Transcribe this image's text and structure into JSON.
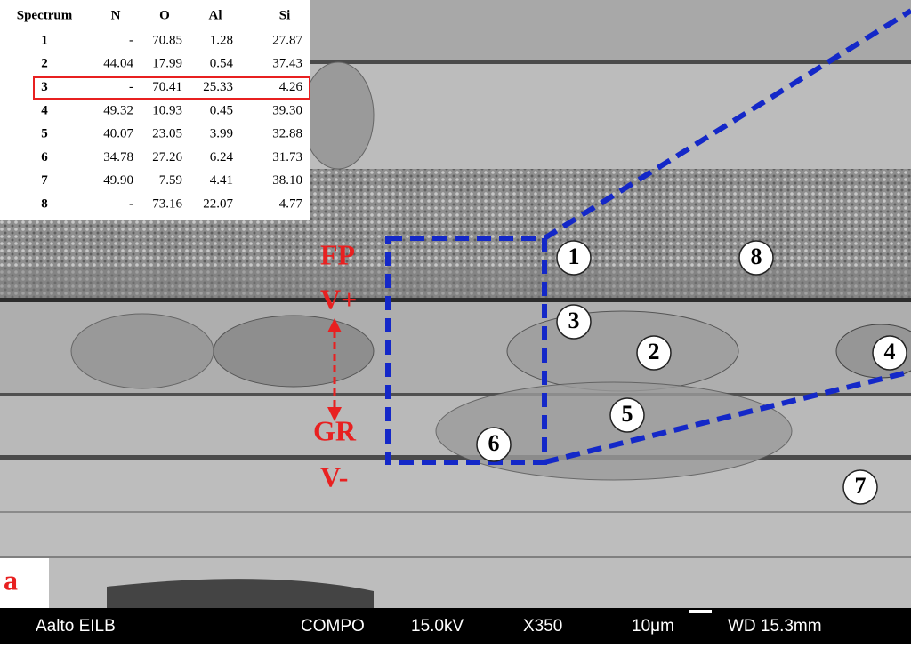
{
  "table": {
    "headers": [
      "Spectrum",
      "N",
      "O",
      "Al",
      "Si"
    ],
    "rows": [
      [
        "1",
        "-",
        "70.85",
        "1.28",
        "27.87"
      ],
      [
        "2",
        "44.04",
        "17.99",
        "0.54",
        "37.43"
      ],
      [
        "3",
        "-",
        "70.41",
        "25.33",
        "4.26"
      ],
      [
        "4",
        "49.32",
        "10.93",
        "0.45",
        "39.30"
      ],
      [
        "5",
        "40.07",
        "23.05",
        "3.99",
        "32.88"
      ],
      [
        "6",
        "34.78",
        "27.26",
        "6.24",
        "31.73"
      ],
      [
        "7",
        "49.90",
        "7.59",
        "4.41",
        "38.10"
      ],
      [
        "8",
        "-",
        "73.16",
        "22.07",
        "4.77"
      ]
    ]
  },
  "labels": [
    "FP",
    "V+",
    "GR",
    "V-"
  ],
  "markers": [
    "1",
    "8",
    "3",
    "2",
    "4",
    "5",
    "6",
    "7"
  ],
  "panel": "a",
  "footer": {
    "left": "Aalto EILB",
    "mode": "COMPO",
    "voltage": "15.0kV",
    "magnification": "X350",
    "scale": "10μm",
    "wd": "WD 15.3mm"
  }
}
